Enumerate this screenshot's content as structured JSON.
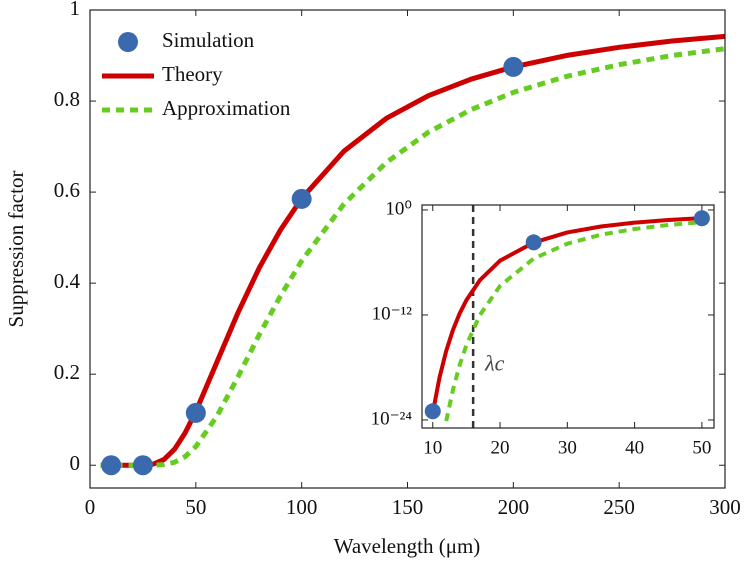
{
  "chart_data": [
    {
      "type": "line",
      "x_label": "Wavelength (μm)",
      "y_label": "Suppression factor",
      "xlim": [
        0,
        300
      ],
      "ylim": [
        -0.05,
        1
      ],
      "xticks": [
        0,
        50,
        100,
        150,
        200,
        250,
        300
      ],
      "yticks": [
        0,
        0.2,
        0.4,
        0.6,
        0.8,
        1
      ],
      "legend": "top-left",
      "series": [
        {
          "name": "Simulation",
          "type": "scatter",
          "color": "#3a6aad",
          "x": [
            10,
            25,
            50,
            100,
            200
          ],
          "values": [
            0,
            0,
            0.115,
            0.585,
            0.875
          ]
        },
        {
          "name": "Theory",
          "type": "line",
          "color": "#cc0000",
          "dashed": false,
          "x": [
            5,
            10,
            15,
            20,
            25,
            30,
            35,
            40,
            45,
            50,
            60,
            70,
            80,
            90,
            100,
            120,
            140,
            160,
            180,
            200,
            225,
            250,
            275,
            300
          ],
          "values": [
            0,
            0,
            0,
            0,
            0.0002,
            0.0027,
            0.0128,
            0.0355,
            0.0716,
            0.118,
            0.227,
            0.336,
            0.434,
            0.517,
            0.586,
            0.69,
            0.762,
            0.812,
            0.848,
            0.875,
            0.9,
            0.918,
            0.932,
            0.942
          ]
        },
        {
          "name": "Approximation",
          "type": "line",
          "color": "#66cc22",
          "dashed": true,
          "x": [
            5,
            10,
            15,
            20,
            25,
            30,
            35,
            40,
            45,
            50,
            60,
            70,
            80,
            90,
            100,
            120,
            140,
            160,
            180,
            200,
            225,
            250,
            275,
            300
          ],
          "values": [
            0,
            0,
            0,
            0,
            0,
            0.0001,
            0.0015,
            0.0067,
            0.0192,
            0.041,
            0.108,
            0.195,
            0.287,
            0.372,
            0.449,
            0.574,
            0.665,
            0.732,
            0.781,
            0.819,
            0.854,
            0.88,
            0.9,
            0.915
          ]
        }
      ]
    },
    {
      "type": "line",
      "log_y": true,
      "xlim": [
        8.4,
        51.8
      ],
      "ylim": [
        1.2e-25,
        3.7
      ],
      "xticks": [
        10,
        20,
        30,
        40,
        50
      ],
      "yticks": [
        {
          "value": 1,
          "label": "10⁰"
        },
        {
          "value": 1e-12,
          "label": "10⁻¹²"
        },
        {
          "value": 1e-24,
          "label": "10⁻²⁴"
        }
      ],
      "annotations": [
        {
          "x": 16,
          "text": "λc"
        }
      ],
      "series": [
        {
          "type": "scatter",
          "color": "#3a6aad",
          "x": [
            10,
            25,
            50
          ],
          "values": [
            1e-23,
            0.0002,
            0.115
          ]
        },
        {
          "type": "line",
          "color": "#cc0000",
          "dashed": false,
          "x": [
            10,
            11,
            12,
            13,
            14,
            15,
            17,
            20,
            25,
            30,
            35,
            40,
            45,
            50
          ],
          "values": [
            6.4e-24,
            6.8e-20,
            7.9e-17,
            1.9e-14,
            1.5e-12,
            4.9e-11,
            9.4e-09,
            1.6e-06,
            0.00019,
            0.0027,
            0.0128,
            0.0355,
            0.0716,
            0.118
          ]
        },
        {
          "type": "line",
          "color": "#66cc22",
          "dashed": true,
          "x": [
            12,
            13,
            14,
            15,
            17,
            20,
            25,
            30,
            35,
            40,
            45,
            50
          ],
          "values": [
            7.4e-25,
            2.8e-21,
            1.9e-18,
            3.6e-16,
            9.5e-13,
            2.1e-09,
            2.8e-06,
            0.00014,
            0.0015,
            0.0067,
            0.0192,
            0.041
          ]
        }
      ]
    }
  ]
}
